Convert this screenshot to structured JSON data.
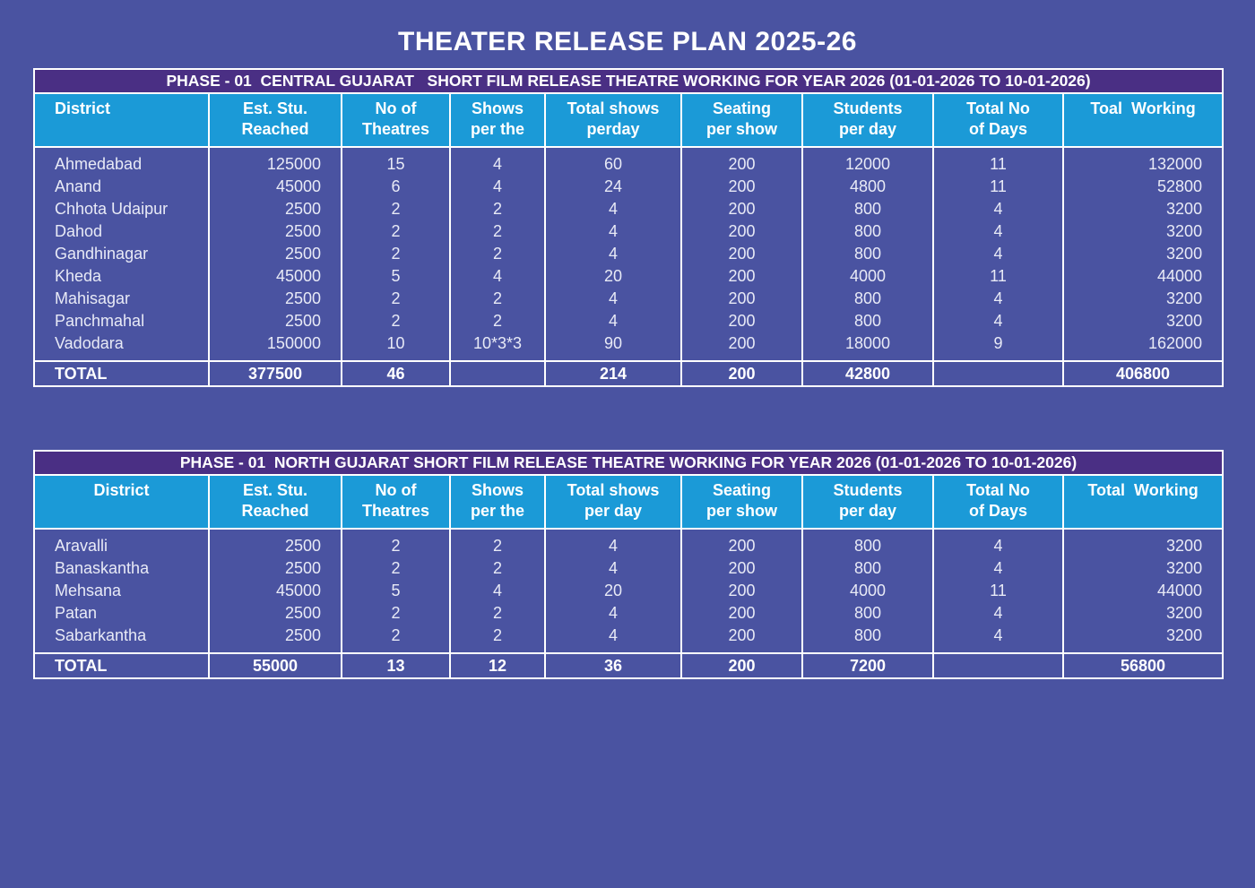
{
  "title": "THEATER RELEASE PLAN 2025-26",
  "tables": [
    {
      "caption": "PHASE - 01  CENTRAL GUJARAT   SHORT FILM RELEASE THEATRE WORKING FOR YEAR 2026 (01-01-2026 TO 10-01-2026)",
      "columns": [
        [
          "District"
        ],
        [
          "Est. Stu.",
          "Reached"
        ],
        [
          "No of",
          "Theatres"
        ],
        [
          "Shows",
          "per the"
        ],
        [
          "Total shows",
          "perday"
        ],
        [
          "Seating",
          "per show"
        ],
        [
          "Students",
          "per day"
        ],
        [
          "Total No",
          "of Days"
        ],
        [
          "Toal  Working"
        ]
      ],
      "rows": [
        [
          "Ahmedabad",
          125000,
          15,
          4,
          60,
          200,
          12000,
          11,
          132000
        ],
        [
          "Anand",
          45000,
          6,
          4,
          24,
          200,
          4800,
          11,
          52800
        ],
        [
          "Chhota Udaipur",
          2500,
          2,
          2,
          4,
          200,
          800,
          4,
          3200
        ],
        [
          "Dahod",
          2500,
          2,
          2,
          4,
          200,
          800,
          4,
          3200
        ],
        [
          "Gandhinagar",
          2500,
          2,
          2,
          4,
          200,
          800,
          4,
          3200
        ],
        [
          "Kheda",
          45000,
          5,
          4,
          20,
          200,
          4000,
          11,
          44000
        ],
        [
          "Mahisagar",
          2500,
          2,
          2,
          4,
          200,
          800,
          4,
          3200
        ],
        [
          "Panchmahal",
          2500,
          2,
          2,
          4,
          200,
          800,
          4,
          3200
        ],
        [
          "Vadodara",
          150000,
          10,
          "10*3*3",
          90,
          200,
          18000,
          9,
          162000
        ]
      ],
      "total": [
        "TOTAL",
        377500,
        46,
        null,
        214,
        200,
        42800,
        null,
        406800
      ]
    },
    {
      "caption": "PHASE - 01  NORTH GUJARAT SHORT FILM RELEASE THEATRE WORKING FOR YEAR 2026 (01-01-2026 TO 10-01-2026)",
      "columns": [
        [
          "District"
        ],
        [
          "Est. Stu.",
          "Reached"
        ],
        [
          "No of",
          "Theatres"
        ],
        [
          "Shows",
          "per the"
        ],
        [
          "Total shows",
          "per day"
        ],
        [
          "Seating",
          "per show"
        ],
        [
          "Students",
          "per day"
        ],
        [
          "Total No",
          "of Days"
        ],
        [
          "Total  Working"
        ]
      ],
      "rows": [
        [
          "Aravalli",
          2500,
          2,
          2,
          4,
          200,
          800,
          4,
          3200
        ],
        [
          "Banaskantha",
          2500,
          2,
          2,
          4,
          200,
          800,
          4,
          3200
        ],
        [
          "Mehsana",
          45000,
          5,
          4,
          20,
          200,
          4000,
          11,
          44000
        ],
        [
          "Patan",
          2500,
          2,
          2,
          4,
          200,
          800,
          4,
          3200
        ],
        [
          "Sabarkantha",
          2500,
          2,
          2,
          4,
          200,
          800,
          4,
          3200
        ]
      ],
      "total": [
        "TOTAL",
        55000,
        13,
        12,
        36,
        200,
        7200,
        null,
        56800
      ]
    }
  ]
}
